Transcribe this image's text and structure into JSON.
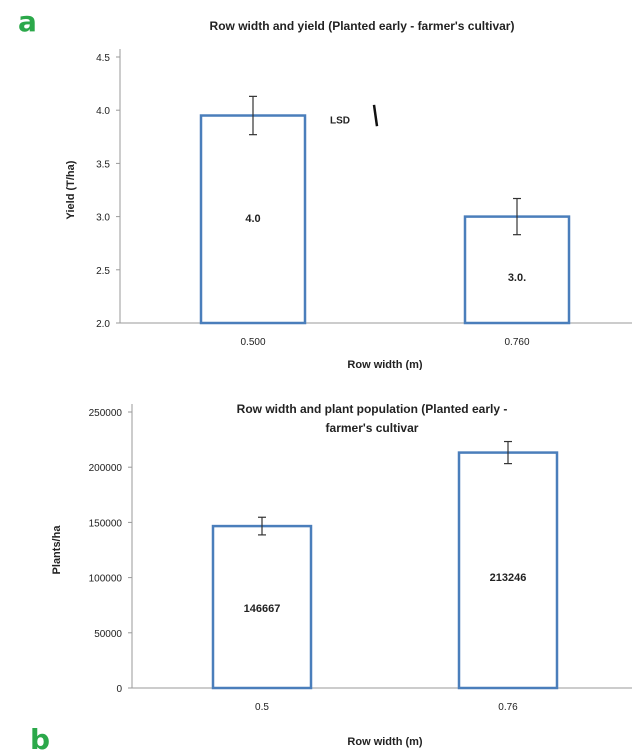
{
  "panel_labels": {
    "a": "a",
    "b": "b"
  },
  "colors": {
    "bar_outline": "#4a7ebb",
    "panel_letter": "#2ba84a"
  },
  "chart_data": [
    {
      "type": "bar",
      "title": "Row width and yield (Planted early - farmer's cultivar)",
      "xlabel": "Row width (m)",
      "ylabel": "Yield (T/ha)",
      "categories": [
        "0.500",
        "0.760"
      ],
      "values": [
        3.95,
        3.0
      ],
      "data_labels": [
        "4.0",
        "3.0."
      ],
      "error": [
        0.18,
        0.17
      ],
      "ylim": [
        2.0,
        4.5
      ],
      "yticks": [
        "2.0",
        "2.5",
        "3.0",
        "3.5",
        "4.0",
        "4.5"
      ],
      "annotation": {
        "text": "LSD",
        "bar_value_range": [
          4.05,
          3.85
        ]
      },
      "grid": false,
      "legend": "none"
    },
    {
      "type": "bar",
      "title": "Row width and plant population (Planted early - farmer's cultivar",
      "xlabel": "Row width (m)",
      "ylabel": "Plants/ha",
      "categories": [
        "0.5",
        "0.76"
      ],
      "values": [
        146667,
        213246
      ],
      "data_labels": [
        "146667",
        "213246"
      ],
      "error": [
        8000,
        10000
      ],
      "ylim": [
        0,
        250000
      ],
      "yticks": [
        "0",
        "50000",
        "100000",
        "150000",
        "200000",
        "250000"
      ],
      "grid": false,
      "legend": "none"
    }
  ]
}
